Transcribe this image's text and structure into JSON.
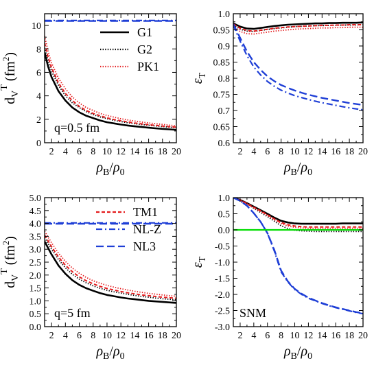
{
  "figure": {
    "legend_top": [
      {
        "label": "G1",
        "color": "#000000",
        "dash": "solid"
      },
      {
        "label": "G2",
        "color": "#000000",
        "dash": "dotted"
      },
      {
        "label": "PK1",
        "color": "#e41a1c",
        "dash": "dotted"
      }
    ],
    "legend_bottom": [
      {
        "label": "TM1",
        "color": "#e41a1c",
        "dash": "dashed"
      },
      {
        "label": "NL-Z",
        "color": "#1f3fd6",
        "dash": "dashdot"
      },
      {
        "label": "NL3",
        "color": "#1f3fd6",
        "dash": "longdash"
      }
    ]
  },
  "chart_data": [
    {
      "type": "line",
      "panel": "top-left",
      "xlabel": "ρB/ρ0",
      "ylabel": "dV T (fm2)",
      "annotation": "q=0.5 fm",
      "xlim": [
        1,
        20
      ],
      "ylim": [
        0,
        11
      ],
      "xticks": [
        2,
        4,
        6,
        8,
        10,
        12,
        14,
        16,
        18,
        20
      ],
      "yticks": [
        0,
        2,
        4,
        6,
        8,
        10
      ],
      "x": [
        1,
        1.5,
        2,
        3,
        4,
        5,
        6,
        7,
        8,
        9,
        10,
        11,
        12,
        13,
        14,
        15,
        16,
        17,
        18,
        19,
        20
      ],
      "series": [
        {
          "name": "G1",
          "color": "#000000",
          "dash": "solid",
          "width": 2.6,
          "values": [
            7.7,
            6.5,
            5.6,
            4.4,
            3.6,
            3.0,
            2.6,
            2.3,
            2.1,
            1.9,
            1.75,
            1.65,
            1.55,
            1.47,
            1.4,
            1.34,
            1.28,
            1.23,
            1.18,
            1.14,
            1.1
          ]
        },
        {
          "name": "G2",
          "color": "#000000",
          "dash": "dotted",
          "width": 1.8,
          "values": [
            8.1,
            7.0,
            6.1,
            4.9,
            4.0,
            3.4,
            3.0,
            2.65,
            2.4,
            2.2,
            2.05,
            1.9,
            1.8,
            1.7,
            1.62,
            1.55,
            1.49,
            1.43,
            1.38,
            1.33,
            1.29
          ]
        },
        {
          "name": "PK1",
          "color": "#e41a1c",
          "dash": "dotted",
          "width": 1.8,
          "values": [
            9.1,
            7.8,
            6.8,
            5.5,
            4.6,
            3.9,
            3.4,
            3.0,
            2.75,
            2.5,
            2.33,
            2.18,
            2.05,
            1.94,
            1.85,
            1.76,
            1.69,
            1.62,
            1.56,
            1.5,
            1.45
          ]
        },
        {
          "name": "TM1",
          "color": "#e41a1c",
          "dash": "dashed",
          "width": 2.0,
          "values": [
            8.5,
            7.3,
            6.4,
            5.1,
            4.2,
            3.6,
            3.1,
            2.75,
            2.5,
            2.3,
            2.12,
            1.98,
            1.87,
            1.77,
            1.68,
            1.61,
            1.54,
            1.48,
            1.42,
            1.37,
            1.33
          ]
        },
        {
          "name": "NL-Z",
          "color": "#1f3fd6",
          "dash": "dashdot",
          "width": 2.2,
          "values": [
            10.42,
            10.42,
            10.42,
            10.42,
            10.42,
            10.42,
            10.42,
            10.42,
            10.42,
            10.42,
            10.42,
            10.42,
            10.42,
            10.42,
            10.42,
            10.42,
            10.42,
            10.42,
            10.42,
            10.42,
            10.42
          ]
        },
        {
          "name": "NL3",
          "color": "#1f3fd6",
          "dash": "longdash",
          "width": 2.4,
          "values": [
            10.38,
            10.38,
            10.38,
            10.38,
            10.38,
            10.38,
            10.38,
            10.38,
            10.38,
            10.38,
            10.38,
            10.38,
            10.38,
            10.38,
            10.38,
            10.38,
            10.38,
            10.38,
            10.38,
            10.38,
            10.38
          ]
        }
      ]
    },
    {
      "type": "line",
      "panel": "top-right",
      "xlabel": "ρB/ρ0",
      "ylabel": "εT",
      "annotation": "",
      "xlim": [
        1,
        20
      ],
      "ylim": [
        0.6,
        1.0
      ],
      "xticks": [
        2,
        4,
        6,
        8,
        10,
        12,
        14,
        16,
        18,
        20
      ],
      "yticks": [
        0.6,
        0.65,
        0.7,
        0.75,
        0.8,
        0.85,
        0.9,
        0.95,
        1.0
      ],
      "x": [
        1,
        2,
        3,
        4,
        5,
        6,
        7,
        8,
        9,
        10,
        11,
        12,
        13,
        14,
        15,
        16,
        17,
        18,
        19,
        20
      ],
      "series": [
        {
          "name": "G1",
          "color": "#000000",
          "dash": "solid",
          "width": 2.6,
          "values": [
            0.97,
            0.96,
            0.954,
            0.953,
            0.956,
            0.959,
            0.962,
            0.964,
            0.966,
            0.967,
            0.968,
            0.969,
            0.97,
            0.97,
            0.971,
            0.971,
            0.972,
            0.972,
            0.972,
            0.973
          ]
        },
        {
          "name": "G2",
          "color": "#000000",
          "dash": "dotted",
          "width": 1.8,
          "values": [
            0.965,
            0.952,
            0.946,
            0.945,
            0.948,
            0.951,
            0.954,
            0.956,
            0.958,
            0.96,
            0.961,
            0.962,
            0.963,
            0.963,
            0.964,
            0.964,
            0.965,
            0.965,
            0.965,
            0.966
          ]
        },
        {
          "name": "PK1",
          "color": "#e41a1c",
          "dash": "dotted",
          "width": 1.8,
          "values": [
            0.96,
            0.945,
            0.938,
            0.937,
            0.94,
            0.943,
            0.946,
            0.948,
            0.95,
            0.952,
            0.953,
            0.954,
            0.955,
            0.956,
            0.956,
            0.957,
            0.957,
            0.958,
            0.958,
            0.958
          ]
        },
        {
          "name": "TM1",
          "color": "#e41a1c",
          "dash": "dashed",
          "width": 2.0,
          "values": [
            0.968,
            0.955,
            0.948,
            0.946,
            0.949,
            0.952,
            0.955,
            0.957,
            0.959,
            0.96,
            0.961,
            0.962,
            0.963,
            0.964,
            0.964,
            0.965,
            0.965,
            0.966,
            0.966,
            0.966
          ]
        },
        {
          "name": "NL-Z",
          "color": "#1f3fd6",
          "dash": "dashdot",
          "width": 2.2,
          "values": [
            0.965,
            0.915,
            0.87,
            0.835,
            0.81,
            0.79,
            0.775,
            0.763,
            0.754,
            0.746,
            0.74,
            0.734,
            0.729,
            0.724,
            0.72,
            0.716,
            0.712,
            0.708,
            0.705,
            0.702
          ]
        },
        {
          "name": "NL3",
          "color": "#1f3fd6",
          "dash": "longdash",
          "width": 2.4,
          "values": [
            0.968,
            0.925,
            0.883,
            0.85,
            0.826,
            0.806,
            0.791,
            0.779,
            0.77,
            0.762,
            0.755,
            0.749,
            0.744,
            0.739,
            0.735,
            0.731,
            0.727,
            0.723,
            0.72,
            0.717
          ]
        }
      ]
    },
    {
      "type": "line",
      "panel": "bottom-left",
      "xlabel": "ρB/ρ0",
      "ylabel": "dV T (fm2)",
      "annotation": "q=5 fm",
      "xlim": [
        1,
        20
      ],
      "ylim": [
        0,
        5
      ],
      "xticks": [
        2,
        4,
        6,
        8,
        10,
        12,
        14,
        16,
        18,
        20
      ],
      "yticks": [
        0.0,
        0.5,
        1.0,
        1.5,
        2.0,
        2.5,
        3.0,
        3.5,
        4.0,
        4.5,
        5.0
      ],
      "x": [
        1,
        2,
        3,
        4,
        5,
        6,
        7,
        8,
        9,
        10,
        11,
        12,
        13,
        14,
        15,
        16,
        17,
        18,
        19,
        20
      ],
      "series": [
        {
          "name": "G1",
          "color": "#000000",
          "dash": "solid",
          "width": 2.6,
          "values": [
            3.3,
            2.8,
            2.37,
            2.05,
            1.8,
            1.62,
            1.49,
            1.39,
            1.3,
            1.23,
            1.18,
            1.13,
            1.09,
            1.06,
            1.03,
            1.0,
            0.98,
            0.96,
            0.94,
            0.92
          ]
        },
        {
          "name": "G2",
          "color": "#000000",
          "dash": "dotted",
          "width": 1.8,
          "values": [
            3.45,
            3.0,
            2.6,
            2.28,
            2.03,
            1.84,
            1.7,
            1.58,
            1.49,
            1.41,
            1.35,
            1.3,
            1.25,
            1.21,
            1.17,
            1.14,
            1.11,
            1.08,
            1.06,
            1.04
          ]
        },
        {
          "name": "PK1",
          "color": "#e41a1c",
          "dash": "dotted",
          "width": 1.8,
          "values": [
            3.7,
            3.25,
            2.85,
            2.53,
            2.27,
            2.07,
            1.91,
            1.78,
            1.68,
            1.6,
            1.53,
            1.47,
            1.42,
            1.37,
            1.33,
            1.29,
            1.26,
            1.23,
            1.2,
            1.18
          ]
        },
        {
          "name": "TM1",
          "color": "#e41a1c",
          "dash": "dashed",
          "width": 2.0,
          "values": [
            3.55,
            3.1,
            2.7,
            2.38,
            2.13,
            1.93,
            1.78,
            1.66,
            1.56,
            1.48,
            1.42,
            1.36,
            1.31,
            1.27,
            1.23,
            1.2,
            1.17,
            1.14,
            1.12,
            1.1
          ]
        },
        {
          "name": "NL-Z",
          "color": "#1f3fd6",
          "dash": "dashdot",
          "width": 2.2,
          "values": [
            4.02,
            4.02,
            4.02,
            4.02,
            4.02,
            4.02,
            4.02,
            4.02,
            4.02,
            4.02,
            4.02,
            4.02,
            4.02,
            4.02,
            4.02,
            4.02,
            4.02,
            4.02,
            4.02,
            4.02
          ]
        },
        {
          "name": "NL3",
          "color": "#1f3fd6",
          "dash": "longdash",
          "width": 2.4,
          "values": [
            3.99,
            3.99,
            3.99,
            3.99,
            3.99,
            3.99,
            3.99,
            3.99,
            3.99,
            3.99,
            3.99,
            3.99,
            3.99,
            3.99,
            3.99,
            3.99,
            3.99,
            3.99,
            3.99,
            3.99
          ]
        }
      ]
    },
    {
      "type": "line",
      "panel": "bottom-right",
      "xlabel": "ρB/ρ0",
      "ylabel": "εT",
      "annotation": "SNM",
      "xlim": [
        1,
        20
      ],
      "ylim": [
        -3.0,
        1.0
      ],
      "xticks": [
        2,
        4,
        6,
        8,
        10,
        12,
        14,
        16,
        18,
        20
      ],
      "yticks": [
        -3.0,
        -2.5,
        -2.0,
        -1.5,
        -1.0,
        -0.5,
        0.0,
        0.5,
        1.0
      ],
      "x": [
        1,
        2,
        3,
        4,
        5,
        6,
        7,
        8,
        9,
        10,
        11,
        12,
        13,
        14,
        15,
        16,
        17,
        18,
        19,
        20
      ],
      "series": [
        {
          "name": "G1",
          "color": "#000000",
          "dash": "solid",
          "width": 2.6,
          "values": [
            1.0,
            0.93,
            0.83,
            0.72,
            0.61,
            0.5,
            0.38,
            0.28,
            0.23,
            0.2,
            0.19,
            0.19,
            0.19,
            0.19,
            0.19,
            0.19,
            0.2,
            0.2,
            0.2,
            0.2
          ]
        },
        {
          "name": "G2",
          "color": "#000000",
          "dash": "dotted",
          "width": 1.8,
          "values": [
            1.0,
            0.92,
            0.8,
            0.67,
            0.54,
            0.41,
            0.27,
            0.13,
            0.04,
            -0.01,
            -0.03,
            -0.04,
            -0.05,
            -0.05,
            -0.05,
            -0.05,
            -0.05,
            -0.05,
            -0.05,
            -0.05
          ]
        },
        {
          "name": "PK1",
          "color": "#e41a1c",
          "dash": "dotted",
          "width": 1.8,
          "values": [
            1.0,
            0.92,
            0.81,
            0.69,
            0.57,
            0.45,
            0.32,
            0.2,
            0.12,
            0.08,
            0.06,
            0.05,
            0.05,
            0.05,
            0.05,
            0.05,
            0.05,
            0.05,
            0.05,
            0.05
          ]
        },
        {
          "name": "TM1",
          "color": "#e41a1c",
          "dash": "dashed",
          "width": 2.0,
          "values": [
            1.0,
            0.93,
            0.82,
            0.7,
            0.59,
            0.47,
            0.34,
            0.23,
            0.16,
            0.12,
            0.1,
            0.09,
            0.09,
            0.09,
            0.09,
            0.09,
            0.09,
            0.09,
            0.09,
            0.09
          ]
        },
        {
          "name": "NL-Z",
          "color": "#1f3fd6",
          "dash": "dashdot",
          "width": 2.2,
          "values": [
            1.0,
            0.9,
            0.75,
            0.52,
            0.25,
            -0.1,
            -0.65,
            -1.3,
            -1.62,
            -1.85,
            -2.0,
            -2.12,
            -2.2,
            -2.28,
            -2.35,
            -2.41,
            -2.46,
            -2.51,
            -2.56,
            -2.6
          ]
        },
        {
          "name": "NL3",
          "color": "#1f3fd6",
          "dash": "longdash",
          "width": 2.4,
          "values": [
            1.0,
            0.9,
            0.75,
            0.52,
            0.25,
            -0.1,
            -0.62,
            -1.26,
            -1.6,
            -1.83,
            -1.98,
            -2.1,
            -2.19,
            -2.27,
            -2.34,
            -2.4,
            -2.45,
            -2.5,
            -2.55,
            -2.58
          ]
        },
        {
          "name": "",
          "color": "#00dd00",
          "dash": "solid",
          "width": 2.2,
          "values": [
            0,
            0,
            0,
            0,
            0,
            0,
            0,
            0,
            0,
            0,
            0,
            0,
            0,
            0,
            0,
            0,
            0,
            0,
            0,
            0
          ]
        }
      ]
    }
  ]
}
